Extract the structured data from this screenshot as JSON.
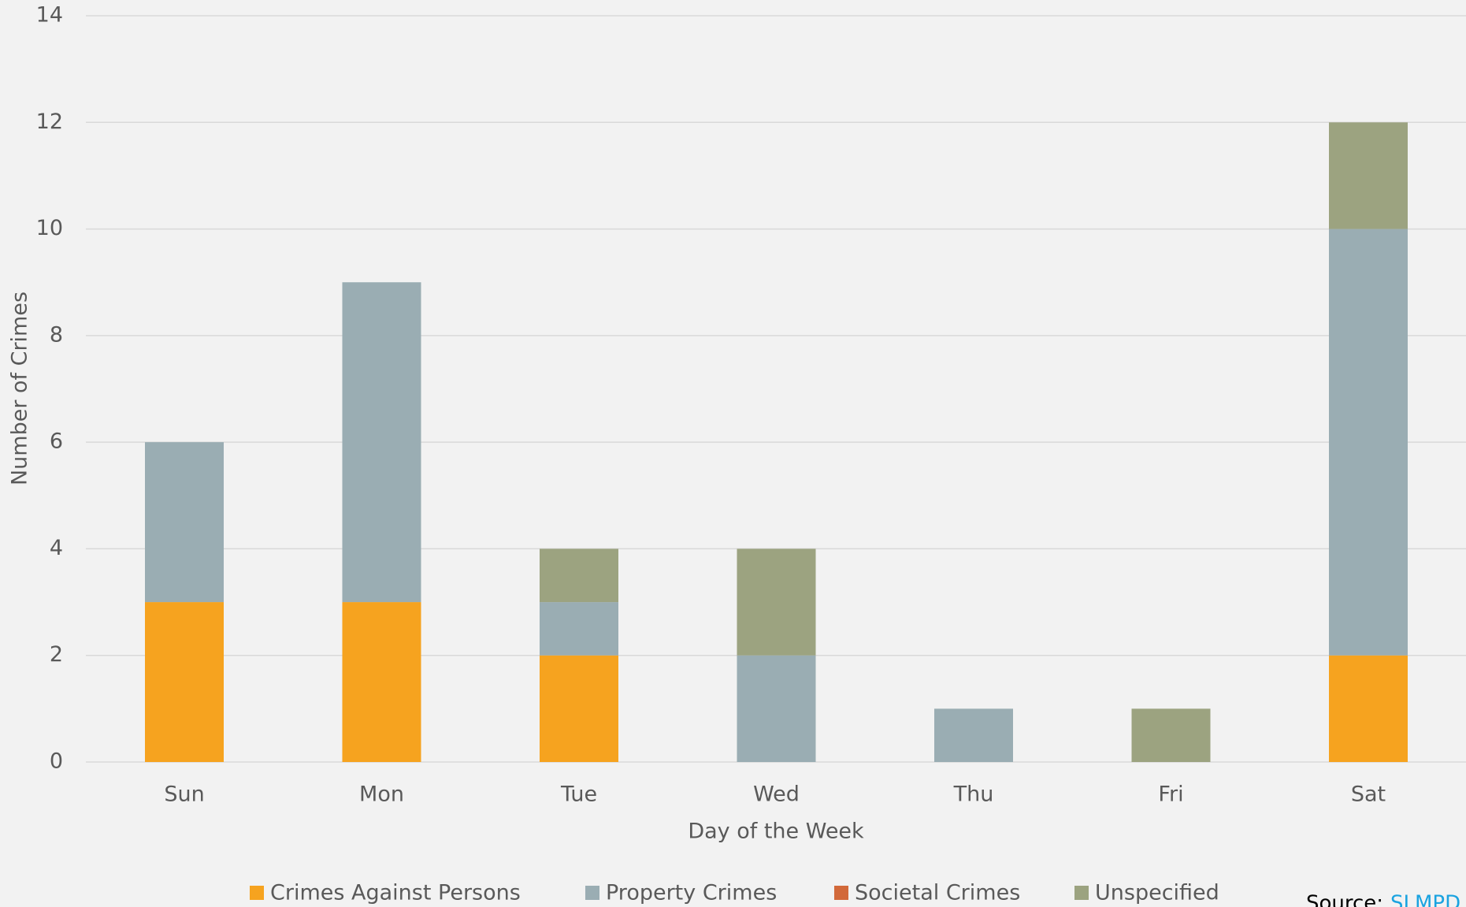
{
  "chart_data": {
    "type": "stacked_bar",
    "y_label": "Number of Crimes",
    "x_label": "Day of the Week",
    "categories": [
      "Sun",
      "Mon",
      "Tue",
      "Wed",
      "Thu",
      "Fri",
      "Sat"
    ],
    "series": [
      {
        "name": "Crimes Against Persons",
        "color": "#f6a31f",
        "values": [
          3,
          3,
          2,
          0,
          0,
          0,
          2
        ]
      },
      {
        "name": "Property Crimes",
        "color": "#9aadb3",
        "values": [
          3,
          6,
          1,
          2,
          1,
          0,
          8
        ]
      },
      {
        "name": "Societal Crimes",
        "color": "#d2693a",
        "values": [
          0,
          0,
          0,
          0,
          0,
          0,
          0
        ]
      },
      {
        "name": "Unspecified",
        "color": "#9ca380",
        "values": [
          0,
          0,
          1,
          2,
          0,
          1,
          2
        ]
      }
    ],
    "ylim": [
      0,
      14
    ],
    "yticks": [
      0,
      2,
      4,
      6,
      8,
      10,
      12,
      14
    ],
    "grid": true,
    "legend": "bottom",
    "source_label": "Source:",
    "source": "SLMPD"
  }
}
